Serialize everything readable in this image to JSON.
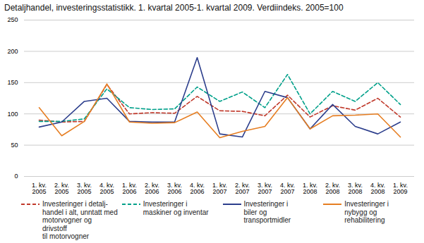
{
  "chart_data": {
    "type": "line",
    "title": "Detaljhandel, investeringsstatistikk. 1. kvartal 2005-1. kvartal 2009. Verdiindeks. 2005=100",
    "categories": [
      "1. kv.\n2005",
      "2. kv.\n2005",
      "3. kv.\n2005",
      "4. kv.\n2005",
      "1. kv.\n2006",
      "2. kv.\n2006",
      "3. kv.\n2006",
      "4. kv.\n2006",
      "1. kv.\n2007",
      "2. kv.\n2007",
      "3. kv.\n2007",
      "4. kv.\n2007",
      "1. kv.\n2008",
      "2. kv.\n2008",
      "3. kv.\n2008",
      "4. kv.\n2008",
      "1. kv.\n2009"
    ],
    "series": [
      {
        "name": "Investeringer i detalj-\nhandel i alt, unntatt med\nmotorvogner og drivstoff\ntil motorvogner",
        "color": "#c0392b",
        "line_style": "dashed",
        "values": [
          90,
          87,
          88,
          147,
          100,
          102,
          101,
          128,
          105,
          104,
          97,
          130,
          95,
          113,
          106,
          125,
          95
        ]
      },
      {
        "name": "Investeringer i\nmaskiner og inventar",
        "color": "#00a08a",
        "line_style": "dashed",
        "values": [
          88,
          88,
          92,
          140,
          110,
          107,
          108,
          143,
          120,
          135,
          110,
          163,
          100,
          136,
          120,
          150,
          115
        ]
      },
      {
        "name": "Investeringer i\nbiler og\ntransportmidler",
        "color": "#2c3e8c",
        "line_style": "solid",
        "values": [
          79,
          87,
          120,
          125,
          88,
          87,
          87,
          190,
          68,
          63,
          136,
          126,
          76,
          115,
          80,
          68,
          87
        ]
      },
      {
        "name": "Investeringer i\nnybygg og\nrehabilitering",
        "color": "#e67e22",
        "line_style": "solid",
        "values": [
          110,
          65,
          88,
          148,
          87,
          85,
          86,
          103,
          62,
          72,
          80,
          126,
          76,
          97,
          98,
          100,
          63
        ]
      }
    ],
    "ylim": [
      0,
      250
    ],
    "yticks": [
      0,
      50,
      100,
      150,
      200,
      250
    ],
    "grid": true,
    "legend": "bottom"
  }
}
